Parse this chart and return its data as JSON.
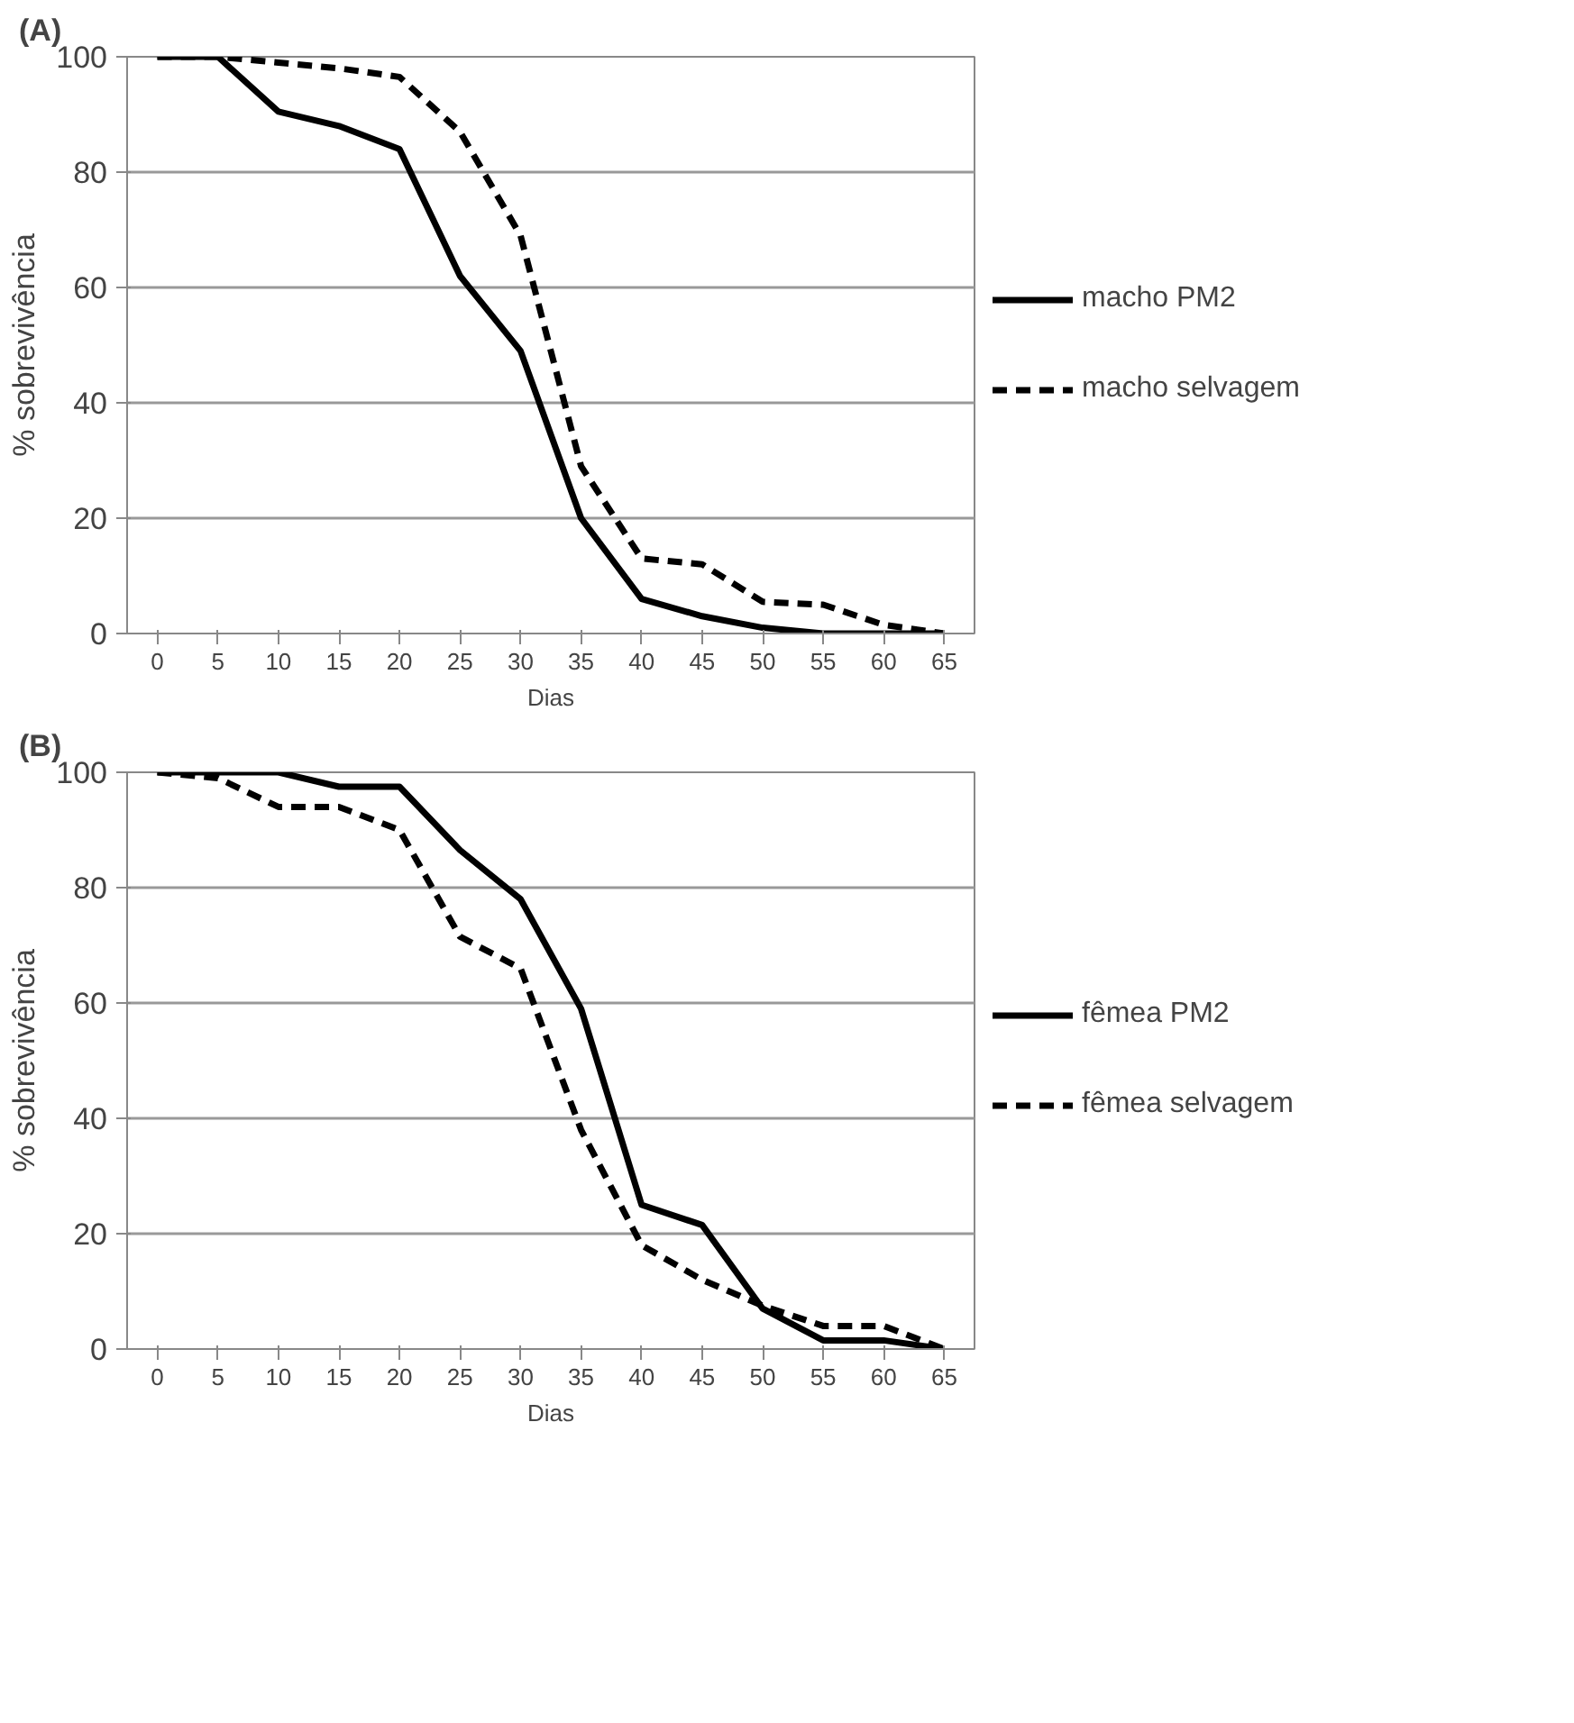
{
  "chart_data": [
    {
      "type": "line",
      "title": "(A)",
      "xlabel": "Dias",
      "ylabel": "% sobrevivência",
      "categories": [
        "0",
        "5",
        "10",
        "15",
        "20",
        "25",
        "30",
        "35",
        "40",
        "45",
        "50",
        "55",
        "60",
        "65"
      ],
      "ylim": [
        0,
        100
      ],
      "yticks": [
        0,
        20,
        40,
        60,
        80,
        100
      ],
      "grid": "y",
      "legend": "right",
      "marker": "none",
      "series": [
        {
          "name": "macho PM2",
          "color": "#000000",
          "line_style": "solid",
          "values": [
            100,
            100,
            90.5,
            88,
            84,
            62,
            49,
            20,
            6,
            3,
            1,
            0,
            0,
            0
          ]
        },
        {
          "name": "macho selvagem",
          "color": "#000000",
          "line_style": "dashed",
          "values": [
            100,
            100,
            99,
            98,
            96.5,
            87,
            69,
            29,
            13,
            12,
            5.5,
            5,
            1.5,
            0
          ]
        }
      ]
    },
    {
      "type": "line",
      "title": "(B)",
      "xlabel": "Dias",
      "ylabel": "% sobrevivência",
      "categories": [
        "0",
        "5",
        "10",
        "15",
        "20",
        "25",
        "30",
        "35",
        "40",
        "45",
        "50",
        "55",
        "60",
        "65"
      ],
      "ylim": [
        0,
        100
      ],
      "yticks": [
        0,
        20,
        40,
        60,
        80,
        100
      ],
      "grid": "y",
      "legend": "right",
      "marker": "none",
      "series": [
        {
          "name": "fêmea PM2",
          "color": "#000000",
          "line_style": "solid",
          "values": [
            100,
            100,
            100,
            97.5,
            97.5,
            86.5,
            78,
            59,
            25,
            21.5,
            7,
            1.5,
            1.5,
            0
          ]
        },
        {
          "name": "fêmea selvagem",
          "color": "#000000",
          "line_style": "dashed",
          "values": [
            100,
            99,
            94,
            94,
            90,
            71.5,
            66,
            38,
            18,
            12,
            7.5,
            4,
            4,
            0
          ]
        }
      ]
    }
  ]
}
